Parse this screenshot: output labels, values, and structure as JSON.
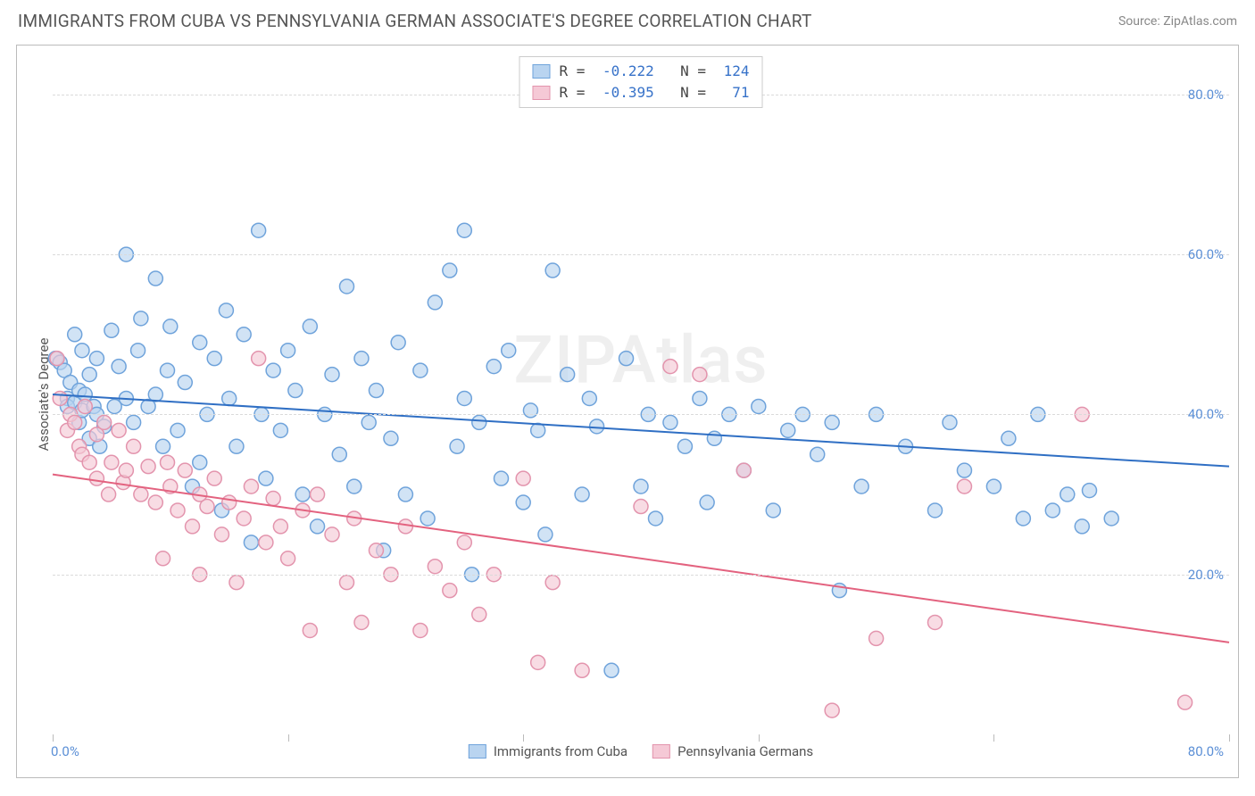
{
  "header": {
    "title": "IMMIGRANTS FROM CUBA VS PENNSYLVANIA GERMAN ASSOCIATE'S DEGREE CORRELATION CHART",
    "source": "Source: ZipAtlas.com"
  },
  "chart": {
    "type": "scatter",
    "ylabel": "Associate's Degree",
    "xlim": [
      0,
      80
    ],
    "ylim": [
      0,
      85
    ],
    "ytick_labels": [
      "20.0%",
      "40.0%",
      "60.0%",
      "80.0%"
    ],
    "ytick_values": [
      20,
      40,
      60,
      80
    ],
    "x_left_label": "0.0%",
    "x_right_label": "80.0%",
    "x_minor_ticks": [
      0,
      16,
      32,
      48,
      64,
      80
    ],
    "grid_color": "#dadada",
    "background_color": "#ffffff",
    "border_color": "#bbbbbb",
    "tick_label_color": "#5b8fd6",
    "axis_label_color": "#555555",
    "marker_radius": 8,
    "marker_stroke_width": 1.5,
    "trend_line_width": 2,
    "watermark": "ZIPAtlas",
    "series": [
      {
        "name": "Immigrants from Cuba",
        "color_fill": "#b9d4f0",
        "color_stroke": "#6fa3db",
        "line_color": "#2f6fc4",
        "legend_R": "-0.222",
        "legend_N": "124",
        "trend": {
          "x1": 0,
          "y1": 42.5,
          "x2": 80,
          "y2": 33.5
        },
        "points": [
          [
            0.2,
            47
          ],
          [
            0.5,
            46.5
          ],
          [
            0.8,
            45.5
          ],
          [
            1,
            42
          ],
          [
            1,
            41
          ],
          [
            1.2,
            44
          ],
          [
            1.5,
            50
          ],
          [
            1.5,
            41.5
          ],
          [
            1.8,
            39
          ],
          [
            1.8,
            43
          ],
          [
            2,
            40.5
          ],
          [
            2,
            48
          ],
          [
            2.2,
            42.5
          ],
          [
            2.5,
            45
          ],
          [
            2.5,
            37
          ],
          [
            2.8,
            41
          ],
          [
            3,
            40
          ],
          [
            3,
            47
          ],
          [
            3.2,
            36
          ],
          [
            3.5,
            38.5
          ],
          [
            4,
            50.5
          ],
          [
            4.2,
            41
          ],
          [
            4.5,
            46
          ],
          [
            5,
            42
          ],
          [
            5,
            60
          ],
          [
            5.5,
            39
          ],
          [
            5.8,
            48
          ],
          [
            6,
            52
          ],
          [
            6.5,
            41
          ],
          [
            7,
            42.5
          ],
          [
            7,
            57
          ],
          [
            7.5,
            36
          ],
          [
            7.8,
            45.5
          ],
          [
            8,
            51
          ],
          [
            8.5,
            38
          ],
          [
            9,
            44
          ],
          [
            9.5,
            31
          ],
          [
            10,
            49
          ],
          [
            10,
            34
          ],
          [
            10.5,
            40
          ],
          [
            11,
            47
          ],
          [
            11.5,
            28
          ],
          [
            11.8,
            53
          ],
          [
            12,
            42
          ],
          [
            12.5,
            36
          ],
          [
            13,
            50
          ],
          [
            13.5,
            24
          ],
          [
            14,
            63
          ],
          [
            14.2,
            40
          ],
          [
            14.5,
            32
          ],
          [
            15,
            45.5
          ],
          [
            15.5,
            38
          ],
          [
            16,
            48
          ],
          [
            16.5,
            43
          ],
          [
            17,
            30
          ],
          [
            17.5,
            51
          ],
          [
            18,
            26
          ],
          [
            18.5,
            40
          ],
          [
            19,
            45
          ],
          [
            19.5,
            35
          ],
          [
            20,
            56
          ],
          [
            20.5,
            31
          ],
          [
            21,
            47
          ],
          [
            21.5,
            39
          ],
          [
            22,
            43
          ],
          [
            22.5,
            23
          ],
          [
            23,
            37
          ],
          [
            23.5,
            49
          ],
          [
            24,
            30
          ],
          [
            25,
            45.5
          ],
          [
            25.5,
            27
          ],
          [
            26,
            54
          ],
          [
            27,
            58
          ],
          [
            27.5,
            36
          ],
          [
            28,
            42
          ],
          [
            28,
            63
          ],
          [
            28.5,
            20
          ],
          [
            29,
            39
          ],
          [
            30,
            46
          ],
          [
            30.5,
            32
          ],
          [
            31,
            48
          ],
          [
            32,
            29
          ],
          [
            32.5,
            40.5
          ],
          [
            33,
            38
          ],
          [
            33.5,
            25
          ],
          [
            34,
            58
          ],
          [
            35,
            45
          ],
          [
            36,
            30
          ],
          [
            36.5,
            42
          ],
          [
            37,
            38.5
          ],
          [
            38,
            8
          ],
          [
            39,
            47
          ],
          [
            40,
            31
          ],
          [
            40.5,
            40
          ],
          [
            41,
            27
          ],
          [
            42,
            39
          ],
          [
            43,
            36
          ],
          [
            44,
            42
          ],
          [
            44.5,
            29
          ],
          [
            45,
            37
          ],
          [
            46,
            40
          ],
          [
            47,
            33
          ],
          [
            48,
            41
          ],
          [
            49,
            28
          ],
          [
            50,
            38
          ],
          [
            51,
            40
          ],
          [
            52,
            35
          ],
          [
            53,
            39
          ],
          [
            53.5,
            18
          ],
          [
            55,
            31
          ],
          [
            56,
            40
          ],
          [
            58,
            36
          ],
          [
            60,
            28
          ],
          [
            61,
            39
          ],
          [
            62,
            33
          ],
          [
            64,
            31
          ],
          [
            65,
            37
          ],
          [
            66,
            27
          ],
          [
            67,
            40
          ],
          [
            68,
            28
          ],
          [
            69,
            30
          ],
          [
            70,
            26
          ],
          [
            70.5,
            30.5
          ],
          [
            72,
            27
          ]
        ]
      },
      {
        "name": "Pennsylvania Germans",
        "color_fill": "#f5c9d6",
        "color_stroke": "#e394ad",
        "line_color": "#e3627f",
        "legend_R": "-0.395",
        "legend_N": " 71",
        "trend": {
          "x1": 0,
          "y1": 32.5,
          "x2": 80,
          "y2": 11.5
        },
        "points": [
          [
            0.3,
            47
          ],
          [
            0.5,
            42
          ],
          [
            1,
            38
          ],
          [
            1.2,
            40
          ],
          [
            1.5,
            39
          ],
          [
            1.8,
            36
          ],
          [
            2,
            35
          ],
          [
            2.2,
            41
          ],
          [
            2.5,
            34
          ],
          [
            3,
            37.5
          ],
          [
            3,
            32
          ],
          [
            3.5,
            39
          ],
          [
            3.8,
            30
          ],
          [
            4,
            34
          ],
          [
            4.5,
            38
          ],
          [
            4.8,
            31.5
          ],
          [
            5,
            33
          ],
          [
            5.5,
            36
          ],
          [
            6,
            30
          ],
          [
            6.5,
            33.5
          ],
          [
            7,
            29
          ],
          [
            7.5,
            22
          ],
          [
            7.8,
            34
          ],
          [
            8,
            31
          ],
          [
            8.5,
            28
          ],
          [
            9,
            33
          ],
          [
            9.5,
            26
          ],
          [
            10,
            30
          ],
          [
            10,
            20
          ],
          [
            10.5,
            28.5
          ],
          [
            11,
            32
          ],
          [
            11.5,
            25
          ],
          [
            12,
            29
          ],
          [
            12.5,
            19
          ],
          [
            13,
            27
          ],
          [
            13.5,
            31
          ],
          [
            14,
            47
          ],
          [
            14.5,
            24
          ],
          [
            15,
            29.5
          ],
          [
            15.5,
            26
          ],
          [
            16,
            22
          ],
          [
            17,
            28
          ],
          [
            17.5,
            13
          ],
          [
            18,
            30
          ],
          [
            19,
            25
          ],
          [
            20,
            19
          ],
          [
            20.5,
            27
          ],
          [
            21,
            14
          ],
          [
            22,
            23
          ],
          [
            23,
            20
          ],
          [
            24,
            26
          ],
          [
            25,
            13
          ],
          [
            26,
            21
          ],
          [
            27,
            18
          ],
          [
            28,
            24
          ],
          [
            29,
            15
          ],
          [
            30,
            20
          ],
          [
            32,
            32
          ],
          [
            33,
            9
          ],
          [
            34,
            19
          ],
          [
            36,
            8
          ],
          [
            40,
            28.5
          ],
          [
            42,
            46
          ],
          [
            44,
            45
          ],
          [
            47,
            33
          ],
          [
            53,
            3
          ],
          [
            56,
            12
          ],
          [
            60,
            14
          ],
          [
            62,
            31
          ],
          [
            70,
            40
          ],
          [
            77,
            4
          ]
        ]
      }
    ],
    "legend_top": {
      "border_color": "#cccccc",
      "font_size": 16,
      "label_color": "#444444",
      "value_color": "#3772c9"
    },
    "legend_bottom": {
      "font_size": 15,
      "color": "#555555"
    }
  }
}
